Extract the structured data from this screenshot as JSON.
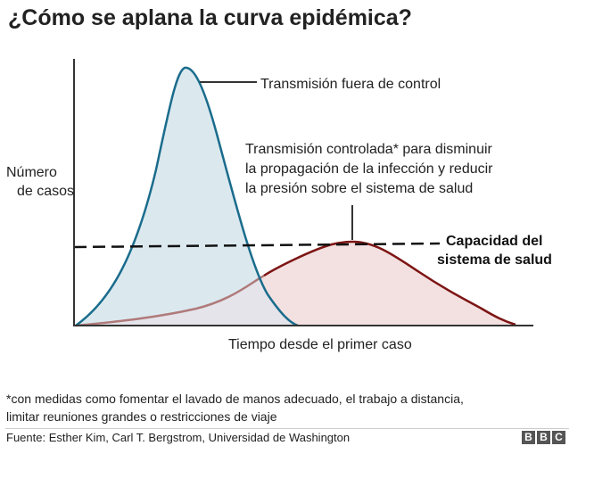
{
  "title": "¿Cómo se aplana la curva epidémica?",
  "chart_data": {
    "type": "area",
    "ylabel": [
      "Número",
      "de casos"
    ],
    "xlabel": "Tiempo desde el primer caso",
    "threshold": {
      "label": [
        "Capacidad del",
        "sistema de salud"
      ]
    },
    "series": [
      {
        "name": "Transmisión fuera de control"
      },
      {
        "name": [
          "Transmisión controlada* para disminuir",
          "la propagación de la infección y reducir",
          "la presión sobre el sistema de salud"
        ]
      }
    ]
  },
  "colors": {
    "uncontrolled_line": "#1a6c8c",
    "uncontrolled_fill": "#dbe9ef",
    "controlled_line": "#7d1414",
    "controlled_fill": "#f3e0e0",
    "overlap_fill": "#e4e4ea",
    "axis": "#333333",
    "threshold": "#111111"
  },
  "footnote": [
    "*con medidas como fomentar el lavado de manos adecuado, el trabajo a distancia,",
    "limitar reuniones grandes o restricciones de viaje"
  ],
  "source": "Fuente: Esther Kim, Carl T. Bergstrom, Universidad de Washington",
  "logo": [
    "B",
    "B",
    "C"
  ]
}
